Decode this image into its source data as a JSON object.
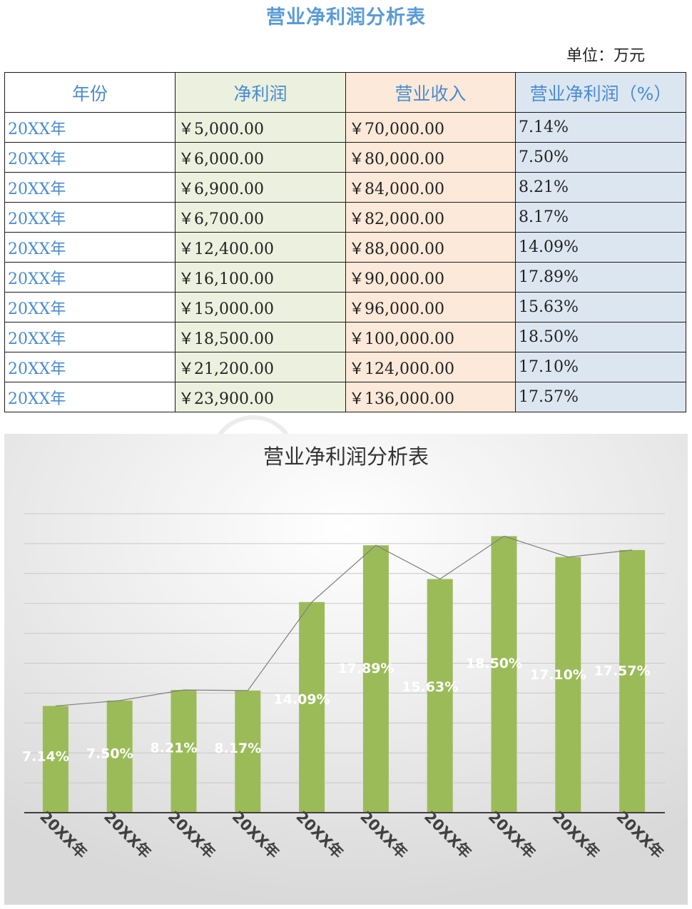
{
  "page": {
    "title": "营业净利润分析表",
    "unit": "单位：万元"
  },
  "table": {
    "headers": [
      "年份",
      "净利润",
      "营业收入",
      "营业净利润（%）"
    ],
    "rows": [
      [
        "20XX年",
        "￥5,000.00",
        "￥70,000.00",
        "7.14%"
      ],
      [
        "20XX年",
        "￥6,000.00",
        "￥80,000.00",
        "7.50%"
      ],
      [
        "20XX年",
        "￥6,900.00",
        "￥84,000.00",
        "8.21%"
      ],
      [
        "20XX年",
        "￥6,700.00",
        "￥82,000.00",
        "8.17%"
      ],
      [
        "20XX年",
        "￥12,400.00",
        "￥88,000.00",
        "14.09%"
      ],
      [
        "20XX年",
        "￥16,100.00",
        "￥90,000.00",
        "17.89%"
      ],
      [
        "20XX年",
        "￥15,000.00",
        "￥96,000.00",
        "15.63%"
      ],
      [
        "20XX年",
        "￥18,500.00",
        "￥100,000.00",
        "18.50%"
      ],
      [
        "20XX年",
        "￥21,200.00",
        "￥124,000.00",
        "17.10%"
      ],
      [
        "20XX年",
        "￥23,900.00",
        "￥136,000.00",
        "17.57%"
      ]
    ]
  },
  "chart_data": {
    "type": "bar",
    "title": "营业净利润分析表",
    "categories": [
      "20XX年",
      "20XX年",
      "20XX年",
      "20XX年",
      "20XX年",
      "20XX年",
      "20XX年",
      "20XX年",
      "20XX年",
      "20XX年"
    ],
    "series": [
      {
        "values": [
          7.14,
          7.5,
          8.21,
          8.17,
          14.09,
          17.89,
          15.63,
          18.5,
          17.1,
          17.57
        ],
        "data_labels": [
          "7.14%",
          "7.50%",
          "8.21%",
          "8.17%",
          "14.09%",
          "17.89%",
          "15.63%",
          "18.50%",
          "17.10%",
          "17.57%"
        ],
        "color": "#9bbb59"
      }
    ],
    "line_overlay": {
      "values": [
        7.14,
        7.5,
        8.21,
        8.17,
        14.09,
        17.89,
        15.63,
        18.5,
        17.1,
        17.57
      ],
      "color": "#7f7f7f"
    },
    "ylim": [
      0,
      20
    ],
    "grid": true,
    "legend": "none",
    "background": "#e8e8e8"
  }
}
